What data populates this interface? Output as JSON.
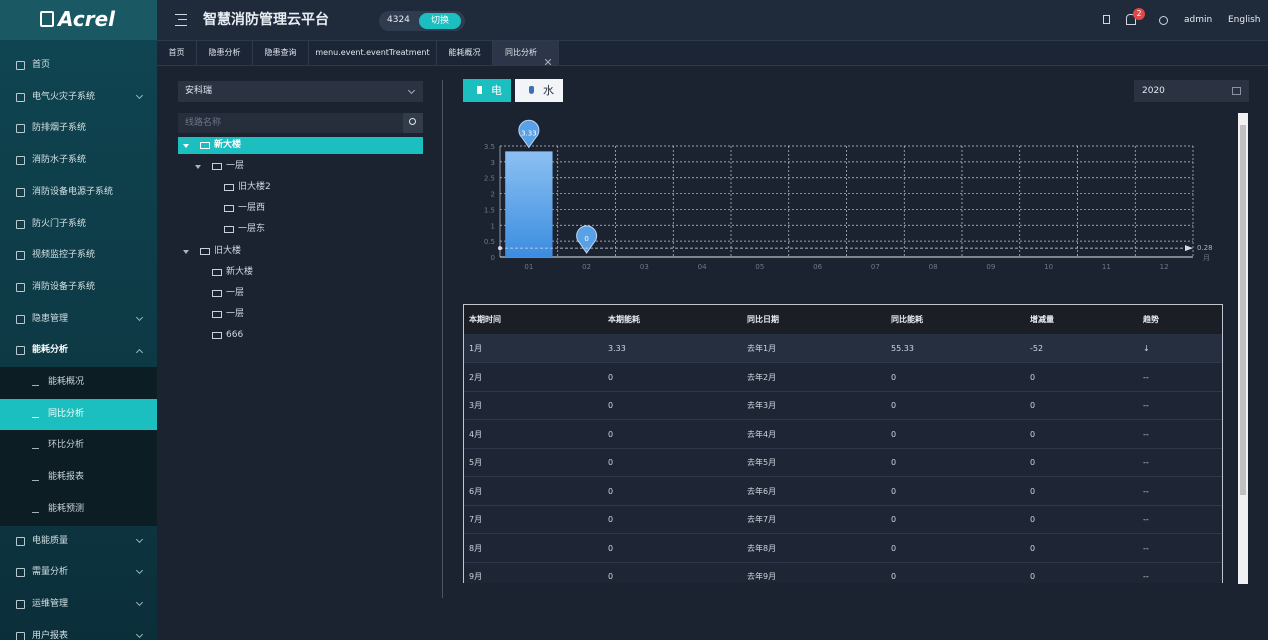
{
  "sidebar": {
    "logo": "Acrel",
    "menu": [
      {
        "label": "首页"
      },
      {
        "label": "电气火灾子系统",
        "expandable": true
      },
      {
        "label": "防排烟子系统"
      },
      {
        "label": "消防水子系统"
      },
      {
        "label": "消防设备电源子系统"
      },
      {
        "label": "防火门子系统"
      },
      {
        "label": "视频监控子系统"
      },
      {
        "label": "消防设备子系统"
      },
      {
        "label": "隐患管理",
        "expandable": true
      },
      {
        "label": "能耗分析",
        "expandable": true,
        "expanded": true,
        "children": [
          {
            "label": "能耗概况"
          },
          {
            "label": "同比分析",
            "active": true
          },
          {
            "label": "环比分析"
          },
          {
            "label": "能耗报表"
          },
          {
            "label": "能耗预测"
          }
        ]
      },
      {
        "label": "电能质量",
        "expandable": true
      },
      {
        "label": "需量分析",
        "expandable": true
      },
      {
        "label": "运维管理",
        "expandable": true
      },
      {
        "label": "用户报表",
        "expandable": true
      }
    ]
  },
  "header": {
    "title": "智慧消防管理云平台",
    "project_id": "4324",
    "switch_button": "切换",
    "notifications": "2",
    "user": "admin",
    "language": "English"
  },
  "tabs": [
    {
      "label": "首页"
    },
    {
      "label": "隐患分析"
    },
    {
      "label": "隐患查询"
    },
    {
      "label": "menu.event.eventTreatment"
    },
    {
      "label": "能耗概况"
    },
    {
      "label": "同比分析",
      "active": true
    }
  ],
  "filter": {
    "site": "安科瑞",
    "search_placeholder": "线路名称"
  },
  "tree": [
    {
      "label": "新大楼",
      "selected": true,
      "children": [
        {
          "label": "一层",
          "children": [
            {
              "label": "旧大楼2"
            },
            {
              "label": "一层西"
            },
            {
              "label": "一层东"
            }
          ]
        }
      ]
    },
    {
      "label": "旧大楼",
      "children": [
        {
          "label": "新大楼"
        },
        {
          "label": "一层"
        },
        {
          "label": "一层"
        },
        {
          "label": "666"
        }
      ]
    }
  ],
  "energy_toggle": [
    {
      "label": "电",
      "active": true
    },
    {
      "label": "水"
    }
  ],
  "year": "2020",
  "chart_data": {
    "type": "bar",
    "categories": [
      "01",
      "02",
      "03",
      "04",
      "05",
      "06",
      "07",
      "08",
      "09",
      "10",
      "11",
      "12"
    ],
    "values": [
      3.33,
      0,
      null,
      null,
      null,
      null,
      null,
      null,
      null,
      null,
      null,
      null
    ],
    "color": "#3b8de0",
    "ylim": [
      0,
      3.5
    ],
    "yticks": [
      0,
      0.5,
      1,
      1.5,
      2,
      2.5,
      3,
      3.5
    ],
    "x_label": "月",
    "grid": true,
    "mark_line": 0.28
  },
  "table": {
    "columns": [
      "本期时间",
      "本期能耗",
      "同比日期",
      "同比能耗",
      "增减量",
      "趋势"
    ],
    "rows": [
      [
        "1月",
        "3.33",
        "去年1月",
        "55.33",
        "-52",
        "↓"
      ],
      [
        "2月",
        "0",
        "去年2月",
        "0",
        "0",
        "--"
      ],
      [
        "3月",
        "0",
        "去年3月",
        "0",
        "0",
        "--"
      ],
      [
        "4月",
        "0",
        "去年4月",
        "0",
        "0",
        "--"
      ],
      [
        "5月",
        "0",
        "去年5月",
        "0",
        "0",
        "--"
      ],
      [
        "6月",
        "0",
        "去年6月",
        "0",
        "0",
        "--"
      ],
      [
        "7月",
        "0",
        "去年7月",
        "0",
        "0",
        "--"
      ],
      [
        "8月",
        "0",
        "去年8月",
        "0",
        "0",
        "--"
      ],
      [
        "9月",
        "0",
        "去年9月",
        "0",
        "0",
        "--"
      ]
    ]
  }
}
